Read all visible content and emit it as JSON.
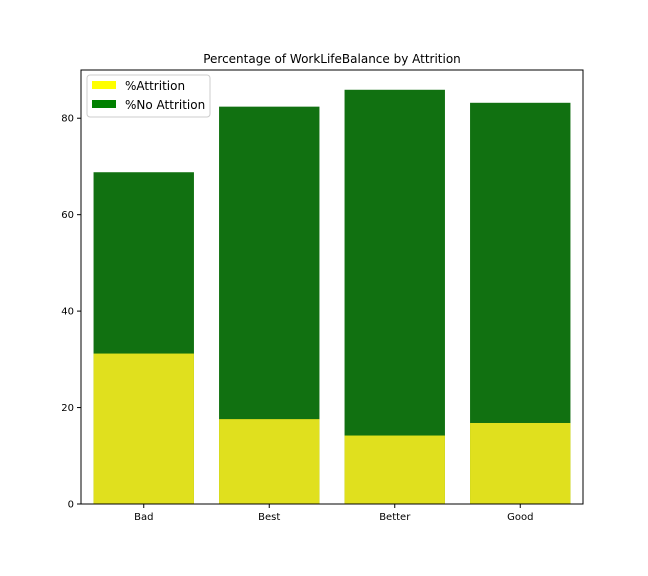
{
  "chart_data": {
    "type": "bar",
    "title": "Percentage of WorkLifeBalance by Attrition",
    "xlabel": "",
    "ylabel": "",
    "categories": [
      "Bad",
      "Best",
      "Better",
      "Good"
    ],
    "series": [
      {
        "name": "%No Attrition",
        "color": "#117111",
        "values": [
          68.8,
          82.4,
          85.9,
          83.2
        ]
      },
      {
        "name": "%Attrition",
        "color": "#e0e01e",
        "values": [
          31.2,
          17.6,
          14.2,
          16.8
        ]
      }
    ],
    "ylim": [
      0,
      90
    ],
    "yticks": [
      0,
      20,
      40,
      60,
      80
    ],
    "legend": {
      "position": "top-left",
      "entries": [
        {
          "label": "%Attrition",
          "color": "#ffff00"
        },
        {
          "label": "%No Attrition",
          "color": "#008000"
        }
      ]
    },
    "grid": false
  }
}
